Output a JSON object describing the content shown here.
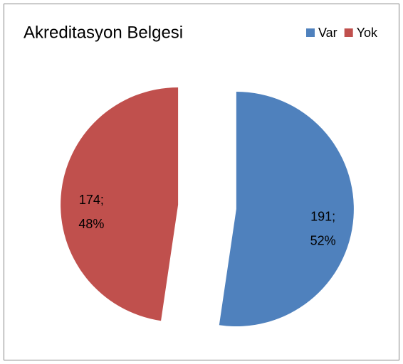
{
  "chart_data": {
    "type": "pie",
    "title": "Akreditasyon Belgesi",
    "categories": [
      "Var",
      "Yok"
    ],
    "values": [
      191,
      174
    ],
    "value_labels": [
      [
        "191;",
        "52%"
      ],
      [
        "174;",
        "48%"
      ]
    ],
    "colors": [
      "#4f81bd",
      "#c0504d"
    ],
    "legend": "top-right",
    "exploded": true
  }
}
